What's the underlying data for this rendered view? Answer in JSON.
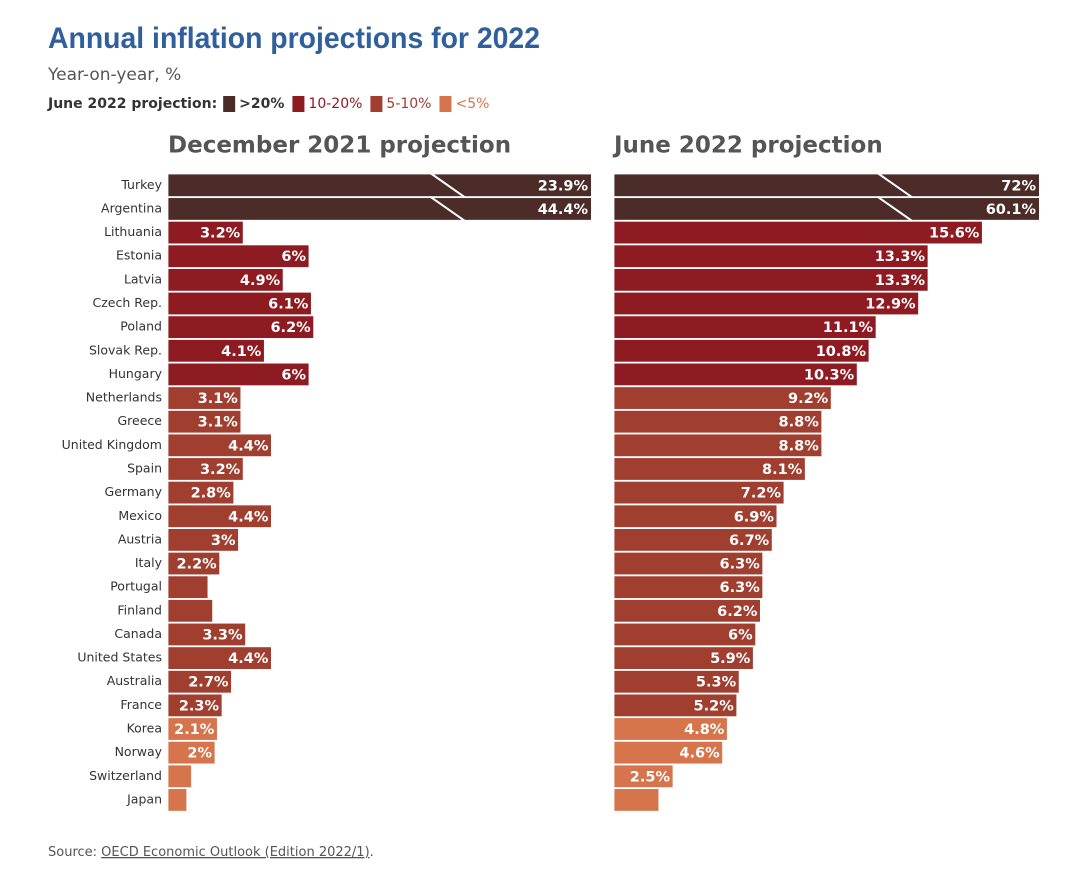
{
  "chart_data": {
    "type": "bar",
    "orientation": "horizontal",
    "title": "Annual inflation projections for 2022",
    "subtitle": "Year-on-year, %",
    "legend_title": "June 2022 projection:",
    "legend": [
      {
        "label": ">20%",
        "color": "#4b2c28"
      },
      {
        "label": "10-20%",
        "color": "#8e1b21"
      },
      {
        "label": "5-10%",
        "color": "#a03f30"
      },
      {
        "label": "<5%",
        "color": "#d6744b"
      }
    ],
    "categories": [
      "Turkey",
      "Argentina",
      "Lithuania",
      "Estonia",
      "Latvia",
      "Czech Rep.",
      "Poland",
      "Slovak Rep.",
      "Hungary",
      "Netherlands",
      "Greece",
      "United Kingdom",
      "Spain",
      "Germany",
      "Mexico",
      "Austria",
      "Italy",
      "Portugal",
      "Finland",
      "Canada",
      "United States",
      "Australia",
      "France",
      "Korea",
      "Norway",
      "Switzerland",
      "Japan"
    ],
    "colors": [
      "#4b2c28",
      "#4b2c28",
      "#8e1b21",
      "#8e1b21",
      "#8e1b21",
      "#8e1b21",
      "#8e1b21",
      "#8e1b21",
      "#8e1b21",
      "#a03f30",
      "#a03f30",
      "#a03f30",
      "#a03f30",
      "#a03f30",
      "#a03f30",
      "#a03f30",
      "#a03f30",
      "#a03f30",
      "#a03f30",
      "#a03f30",
      "#a03f30",
      "#a03f30",
      "#a03f30",
      "#d6744b",
      "#d6744b",
      "#d6744b",
      "#d6744b"
    ],
    "xlim": [
      0,
      18
    ],
    "series": [
      {
        "name": "December 2021 projection",
        "values": [
          23.9,
          44.4,
          3.2,
          6,
          4.9,
          6.1,
          6.2,
          4.1,
          6,
          3.1,
          3.1,
          4.4,
          3.2,
          2.8,
          4.4,
          3,
          2.2,
          1.7,
          1.9,
          3.3,
          4.4,
          2.7,
          2.3,
          2.1,
          2,
          1.0,
          0.8
        ],
        "value_labels": [
          "23.9%",
          "44.4%",
          "3.2%",
          "6%",
          "4.9%",
          "6.1%",
          "6.2%",
          "4.1%",
          "6%",
          "3.1%",
          "3.1%",
          "4.4%",
          "3.2%",
          "2.8%",
          "4.4%",
          "3%",
          "2.2%",
          null,
          null,
          "3.3%",
          "4.4%",
          "2.7%",
          "2.3%",
          "2.1%",
          "2%",
          null,
          null
        ]
      },
      {
        "name": "June 2022 projection",
        "values": [
          72,
          60.1,
          15.6,
          13.3,
          13.3,
          12.9,
          11.1,
          10.8,
          10.3,
          9.2,
          8.8,
          8.8,
          8.1,
          7.2,
          6.9,
          6.7,
          6.3,
          6.3,
          6.2,
          6,
          5.9,
          5.3,
          5.2,
          4.8,
          4.6,
          2.5,
          1.9
        ],
        "value_labels": [
          "72%",
          "60.1%",
          "15.6%",
          "13.3%",
          "13.3%",
          "12.9%",
          "11.1%",
          "10.8%",
          "10.3%",
          "9.2%",
          "8.8%",
          "8.8%",
          "8.1%",
          "7.2%",
          "6.9%",
          "6.7%",
          "6.3%",
          "6.3%",
          "6.2%",
          "6%",
          "5.9%",
          "5.3%",
          "5.2%",
          "4.8%",
          "4.6%",
          "2.5%",
          null
        ]
      }
    ],
    "source_prefix": "Source:",
    "source_link": "OECD Economic Outlook (Edition 2022/1)",
    "source_suffix": "."
  }
}
